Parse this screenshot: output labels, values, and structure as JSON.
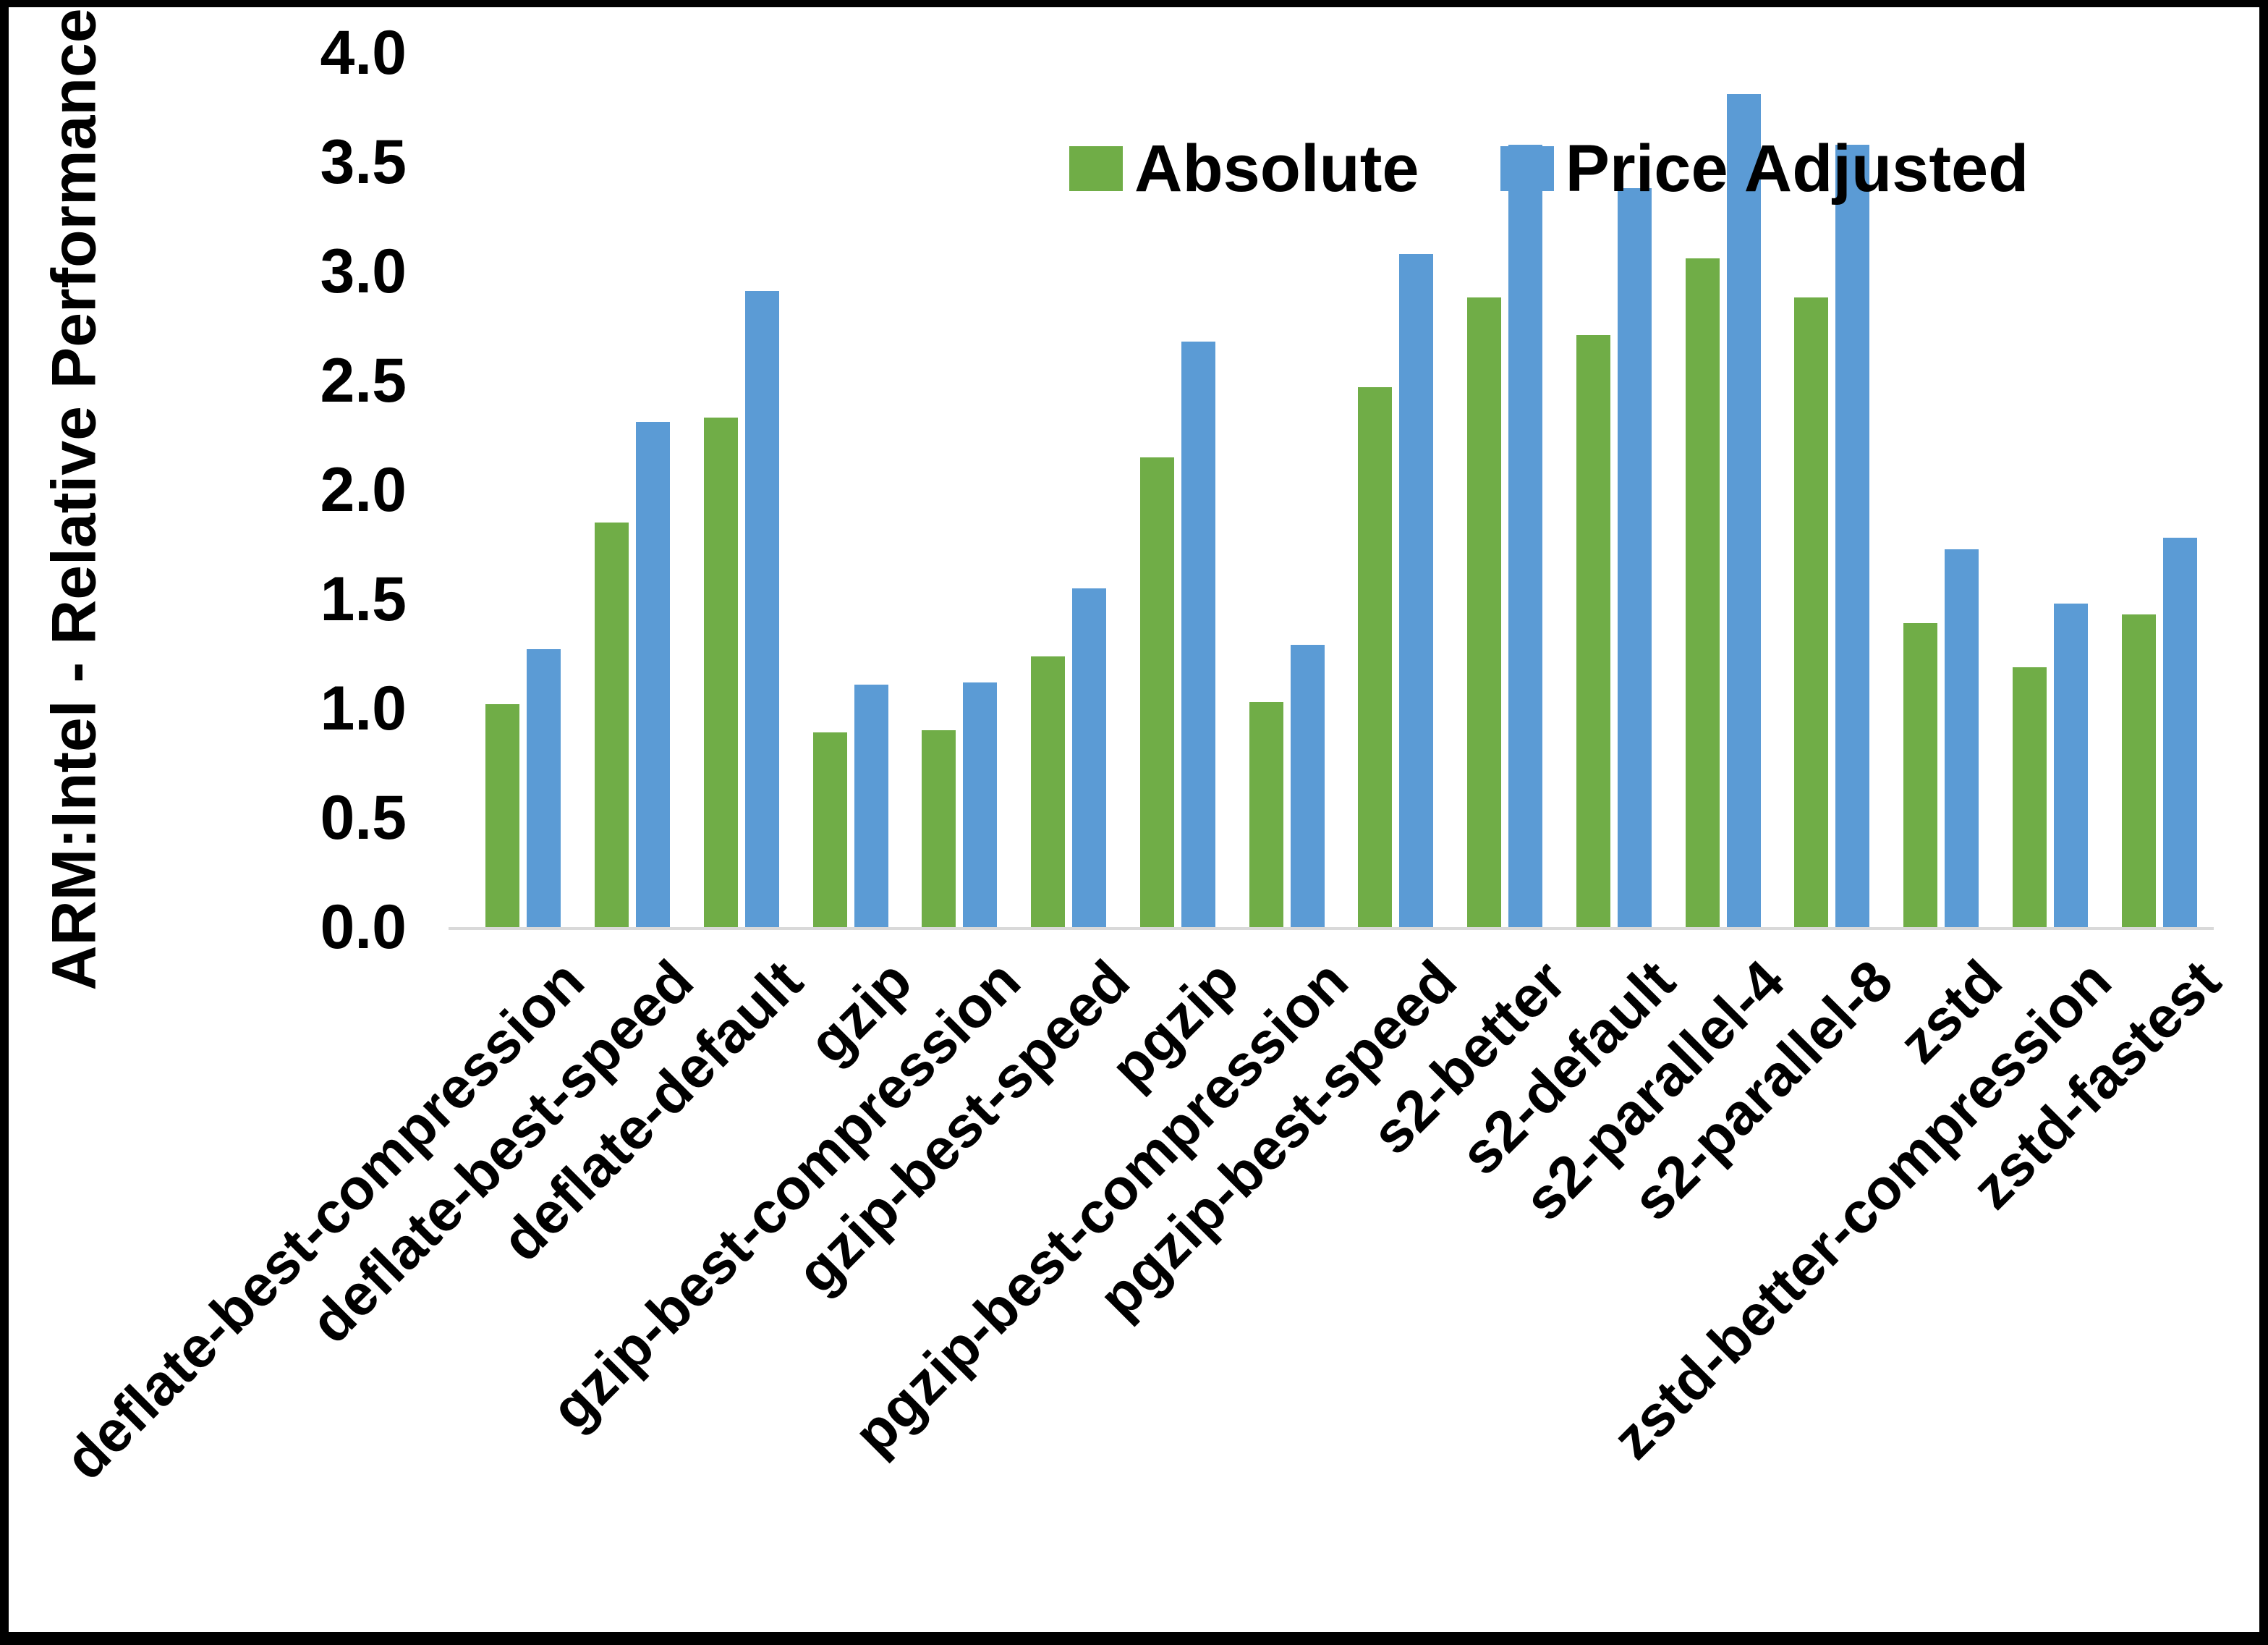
{
  "figure": {
    "y_axis_title": "ARM:Intel - Relative Performance",
    "background_color": "#FFFFFF",
    "frame_color": "#000000",
    "axis_line_color": "#D9D9D9"
  },
  "chart_data": {
    "type": "bar",
    "title": "",
    "ylabel": "ARM:Intel - Relative Performance",
    "xlabel": "",
    "ylim": [
      0.0,
      4.0
    ],
    "yticks": [
      "0.0",
      "0.5",
      "1.0",
      "1.5",
      "2.0",
      "2.5",
      "3.0",
      "3.5",
      "4.0"
    ],
    "grid": false,
    "legend_position": "top-inside",
    "categories": [
      "deflate-best-compression",
      "deflate-best-speed",
      "deflate-default",
      "gzip",
      "gzip-best-compression",
      "gzip-best-speed",
      "pgzip",
      "pgzip-best-compression",
      "pgzip-best-speed",
      "s2-better",
      "s2-default",
      "s2-parallel-4",
      "s2-parallel-8",
      "zstd",
      "zstd-better-compression",
      "zstd-fastest"
    ],
    "series": [
      {
        "name": "Absolute",
        "color": "#70AD47",
        "values": [
          1.02,
          1.85,
          2.33,
          0.89,
          0.9,
          1.24,
          2.15,
          1.03,
          2.47,
          2.88,
          2.71,
          3.06,
          2.88,
          1.39,
          1.19,
          1.43
        ]
      },
      {
        "name": "Price Adjusted",
        "color": "#5B9BD5",
        "values": [
          1.27,
          2.31,
          2.91,
          1.11,
          1.12,
          1.55,
          2.68,
          1.29,
          3.08,
          3.58,
          3.38,
          3.81,
          3.58,
          1.73,
          1.48,
          1.78
        ]
      }
    ]
  }
}
